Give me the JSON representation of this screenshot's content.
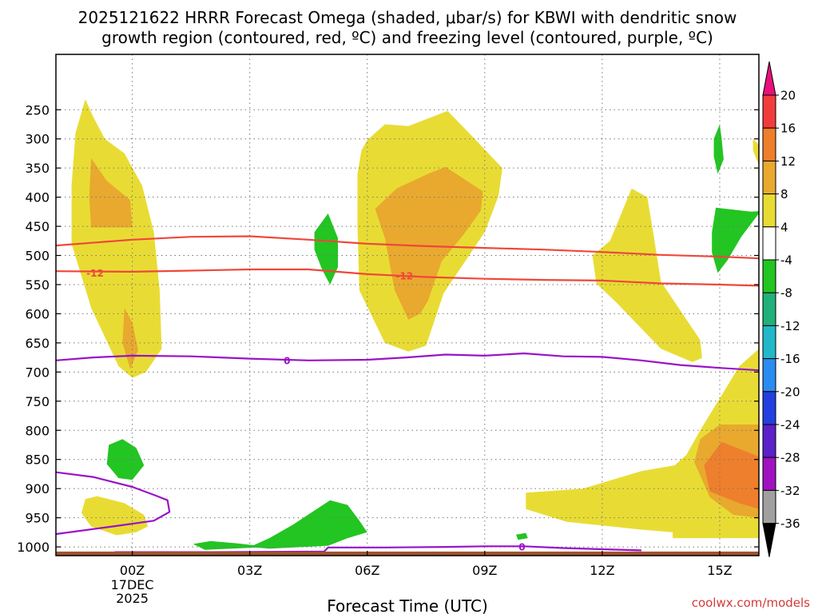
{
  "chart_data": {
    "type": "heatmap",
    "title_lines": [
      "2025121622 HRRR Forecast Omega (shaded, μbar/s) for KBWI with dendritic snow",
      "growth region (contoured, red, ºC) and freezing level (contoured, purple, ºC)"
    ],
    "xlabel": "Forecast Time (UTC)",
    "ylabel": "",
    "x_range_hours_from_00z": [
      -1.95,
      16.0
    ],
    "y_range_hPa": [
      1015,
      155
    ],
    "x_ticks": [
      {
        "hour": 0,
        "label": "00Z",
        "sub": [
          "17DEC",
          "2025"
        ]
      },
      {
        "hour": 3,
        "label": "03Z",
        "sub": []
      },
      {
        "hour": 6,
        "label": "06Z",
        "sub": []
      },
      {
        "hour": 9,
        "label": "09Z",
        "sub": []
      },
      {
        "hour": 12,
        "label": "12Z",
        "sub": []
      },
      {
        "hour": 15,
        "label": "15Z",
        "sub": []
      }
    ],
    "y_ticks": [
      250,
      300,
      350,
      400,
      450,
      500,
      550,
      600,
      650,
      700,
      750,
      800,
      850,
      900,
      950,
      1000
    ],
    "grid": true,
    "ground_surface_hPa": 1008,
    "ground_color": "#a0522d",
    "colorbar": {
      "label_values": [
        "20",
        "16",
        "12",
        "8",
        "4",
        "-4",
        "-8",
        "-12",
        "-16",
        "-20",
        "-24",
        "-28",
        "-32",
        "-36"
      ],
      "bins": [
        {
          "from": 16,
          "to": 20,
          "color": "#f23c3c"
        },
        {
          "from": 12,
          "to": 16,
          "color": "#ee7f2c"
        },
        {
          "from": 8,
          "to": 12,
          "color": "#e8a92e"
        },
        {
          "from": 4,
          "to": 8,
          "color": "#e8dc34"
        },
        {
          "from": -4,
          "to": 4,
          "color": "#ffffff"
        },
        {
          "from": -8,
          "to": -4,
          "color": "#22c522"
        },
        {
          "from": -12,
          "to": -8,
          "color": "#22b07a"
        },
        {
          "from": -16,
          "to": -12,
          "color": "#22b8c8"
        },
        {
          "from": -20,
          "to": -16,
          "color": "#2a8cf0"
        },
        {
          "from": -24,
          "to": -20,
          "color": "#2240e0"
        },
        {
          "from": -28,
          "to": -24,
          "color": "#5a22c8"
        },
        {
          "from": -32,
          "to": -28,
          "color": "#a012c0"
        },
        {
          "from": -36,
          "to": -32,
          "color": "#a0a0a0"
        }
      ],
      "top_extend_color": "#e8107a",
      "bottom_extend_color": "#000000"
    },
    "regions": [
      {
        "level": "4 to 8",
        "color": "#e8dc34",
        "points": [
          [
            -1.2,
            232
          ],
          [
            -1.0,
            262
          ],
          [
            -0.7,
            300
          ],
          [
            -0.2,
            325
          ],
          [
            0.25,
            380
          ],
          [
            0.55,
            460
          ],
          [
            0.7,
            560
          ],
          [
            0.75,
            660
          ],
          [
            0.35,
            700
          ],
          [
            0.0,
            710
          ],
          [
            -0.35,
            690
          ],
          [
            -1.05,
            590
          ],
          [
            -1.55,
            480
          ],
          [
            -1.55,
            380
          ],
          [
            -1.45,
            290
          ]
        ]
      },
      {
        "level": "8 to 12",
        "color": "#e8a92e",
        "points": [
          [
            -1.05,
            333
          ],
          [
            -0.65,
            372
          ],
          [
            -0.05,
            405
          ],
          [
            0.0,
            452
          ],
          [
            -1.05,
            452
          ],
          [
            -1.1,
            400
          ]
        ]
      },
      {
        "level": "8 to 12",
        "color": "#e8a92e",
        "points": [
          [
            -0.2,
            590
          ],
          [
            0.0,
            615
          ],
          [
            0.15,
            662
          ],
          [
            -0.05,
            695
          ],
          [
            -0.25,
            650
          ]
        ]
      },
      {
        "level": "4 to 8",
        "color": "#e8dc34",
        "points": [
          [
            7.05,
            278
          ],
          [
            8.05,
            252
          ],
          [
            8.6,
            290
          ],
          [
            9.45,
            350
          ],
          [
            9.35,
            398
          ],
          [
            9.0,
            460
          ],
          [
            8.4,
            520
          ],
          [
            7.95,
            565
          ],
          [
            7.5,
            655
          ],
          [
            7.05,
            665
          ],
          [
            6.45,
            650
          ],
          [
            5.8,
            560
          ],
          [
            5.75,
            450
          ],
          [
            5.75,
            360
          ],
          [
            5.85,
            320
          ],
          [
            6.0,
            302
          ],
          [
            6.45,
            275
          ]
        ]
      },
      {
        "level": "8 to 12",
        "color": "#e8a92e",
        "points": [
          [
            8.0,
            348
          ],
          [
            8.95,
            390
          ],
          [
            8.9,
            423
          ],
          [
            8.45,
            465
          ],
          [
            7.9,
            510
          ],
          [
            7.55,
            578
          ],
          [
            7.35,
            600
          ],
          [
            7.05,
            610
          ],
          [
            6.7,
            560
          ],
          [
            6.45,
            470
          ],
          [
            6.2,
            420
          ],
          [
            6.75,
            385
          ],
          [
            7.55,
            360
          ]
        ]
      },
      {
        "level": "4 to 8",
        "color": "#e8dc34",
        "points": [
          [
            12.75,
            385
          ],
          [
            13.15,
            400
          ],
          [
            13.3,
            460
          ],
          [
            13.5,
            545
          ],
          [
            14.35,
            630
          ],
          [
            14.5,
            645
          ],
          [
            14.55,
            676
          ],
          [
            14.3,
            683
          ],
          [
            13.5,
            660
          ],
          [
            12.35,
            580
          ],
          [
            11.85,
            548
          ],
          [
            11.75,
            500
          ],
          [
            12.2,
            475
          ]
        ]
      },
      {
        "level": "4 to 8",
        "color": "#e8dc34",
        "points": [
          [
            16.0,
            310
          ],
          [
            15.85,
            300
          ],
          [
            15.85,
            320
          ],
          [
            16.0,
            345
          ]
        ]
      },
      {
        "level": "4 to 8",
        "color": "#e8dc34",
        "points": [
          [
            -1.2,
            918
          ],
          [
            -0.9,
            913
          ],
          [
            -0.2,
            925
          ],
          [
            0.3,
            945
          ],
          [
            0.4,
            965
          ],
          [
            0.1,
            975
          ],
          [
            -0.4,
            980
          ],
          [
            -1.05,
            965
          ],
          [
            -1.3,
            942
          ]
        ]
      },
      {
        "level": "4 to 8",
        "color": "#e8dc34",
        "points": [
          [
            10.05,
            907
          ],
          [
            11.5,
            900
          ],
          [
            13.0,
            870
          ],
          [
            13.85,
            860
          ],
          [
            14.15,
            842
          ],
          [
            14.5,
            800
          ],
          [
            15.0,
            745
          ],
          [
            15.5,
            690
          ],
          [
            16.0,
            660
          ],
          [
            16.0,
            985
          ],
          [
            13.8,
            985
          ],
          [
            13.8,
            975
          ],
          [
            12.95,
            970
          ],
          [
            11.1,
            957
          ],
          [
            10.05,
            935
          ]
        ]
      },
      {
        "level": "8 to 12",
        "color": "#e8a92e",
        "points": [
          [
            16.0,
            790
          ],
          [
            15.0,
            790
          ],
          [
            14.5,
            815
          ],
          [
            14.35,
            855
          ],
          [
            14.75,
            915
          ],
          [
            15.35,
            945
          ],
          [
            16.0,
            950
          ]
        ]
      },
      {
        "level": "12 to 16",
        "color": "#ee7f2c",
        "points": [
          [
            16.0,
            845
          ],
          [
            15.05,
            820
          ],
          [
            14.6,
            860
          ],
          [
            14.75,
            905
          ],
          [
            15.5,
            925
          ],
          [
            16.0,
            935
          ]
        ]
      },
      {
        "level": "-8 to -4",
        "color": "#22c522",
        "points": [
          [
            -0.6,
            825
          ],
          [
            -0.25,
            815
          ],
          [
            0.1,
            830
          ],
          [
            0.3,
            860
          ],
          [
            0.0,
            885
          ],
          [
            -0.35,
            882
          ],
          [
            -0.65,
            858
          ]
        ]
      },
      {
        "level": "-8 to -4",
        "color": "#22c522",
        "points": [
          [
            5.0,
            428
          ],
          [
            5.25,
            470
          ],
          [
            5.25,
            520
          ],
          [
            5.05,
            550
          ],
          [
            4.85,
            525
          ],
          [
            4.65,
            490
          ],
          [
            4.65,
            460
          ]
        ]
      },
      {
        "level": "-8 to -4",
        "color": "#22c522",
        "points": [
          [
            15.0,
            275
          ],
          [
            15.05,
            300
          ],
          [
            15.1,
            335
          ],
          [
            14.95,
            360
          ],
          [
            14.85,
            330
          ],
          [
            14.85,
            300
          ]
        ]
      },
      {
        "level": "-8 to -4",
        "color": "#22c522",
        "points": [
          [
            16.0,
            424
          ],
          [
            15.8,
            425
          ],
          [
            14.9,
            418
          ],
          [
            14.8,
            460
          ],
          [
            14.8,
            495
          ],
          [
            14.95,
            530
          ],
          [
            15.2,
            508
          ],
          [
            15.55,
            468
          ],
          [
            16.0,
            428
          ]
        ]
      },
      {
        "level": "-8 to -4",
        "color": "#22c522",
        "points": [
          [
            1.55,
            995
          ],
          [
            2.0,
            990
          ],
          [
            2.7,
            994
          ],
          [
            3.5,
            1000
          ],
          [
            1.85,
            1005
          ]
        ]
      },
      {
        "level": "-8 to -4",
        "color": "#22c522",
        "points": [
          [
            3.0,
            1000
          ],
          [
            3.5,
            985
          ],
          [
            4.1,
            962
          ],
          [
            4.6,
            940
          ],
          [
            5.05,
            920
          ],
          [
            5.5,
            928
          ],
          [
            5.8,
            955
          ],
          [
            6.0,
            975
          ],
          [
            5.5,
            985
          ],
          [
            5.0,
            998
          ],
          [
            3.5,
            1003
          ]
        ]
      },
      {
        "level": "-8 to -4",
        "color": "#22c522",
        "points": [
          [
            9.8,
            979
          ],
          [
            10.05,
            976
          ],
          [
            10.1,
            985
          ],
          [
            9.85,
            988
          ]
        ]
      }
    ],
    "contours": [
      {
        "kind": "isotherm",
        "value": "-12",
        "color": "#f0473a",
        "points": [
          [
            -1.95,
            483
          ],
          [
            0.0,
            473
          ],
          [
            1.5,
            468
          ],
          [
            3.0,
            467
          ],
          [
            4.5,
            473
          ],
          [
            6.0,
            480
          ],
          [
            7.5,
            484
          ],
          [
            9.0,
            487
          ],
          [
            10.5,
            490
          ],
          [
            12.0,
            494
          ],
          [
            13.5,
            499
          ],
          [
            15.0,
            502
          ],
          [
            16.0,
            505
          ]
        ]
      },
      {
        "kind": "isotherm",
        "value": "-12",
        "color": "#f0473a",
        "label": {
          "text": "-12",
          "at": [
            -0.95,
            530
          ]
        },
        "points": [
          [
            -1.95,
            527
          ],
          [
            0.0,
            528
          ],
          [
            1.5,
            526
          ],
          [
            3.0,
            524
          ],
          [
            4.5,
            524
          ],
          [
            6.0,
            532
          ],
          [
            7.5,
            537
          ],
          [
            9.0,
            540
          ],
          [
            10.5,
            542
          ],
          [
            12.0,
            543
          ],
          [
            13.5,
            548
          ],
          [
            15.0,
            550
          ],
          [
            16.0,
            552
          ]
        ]
      },
      {
        "kind": "isotherm",
        "value": "-12",
        "color": "#f0473a",
        "label": {
          "text": "-12",
          "at": [
            6.95,
            535
          ]
        },
        "points": []
      },
      {
        "kind": "freezing_level",
        "value": "0",
        "color": "#9a12c9",
        "label": {
          "text": "0",
          "at": [
            3.95,
            680
          ]
        },
        "points": [
          [
            -1.95,
            680
          ],
          [
            -1.0,
            675
          ],
          [
            0.0,
            672
          ],
          [
            1.5,
            673
          ],
          [
            3.0,
            677
          ],
          [
            4.5,
            680
          ],
          [
            6.0,
            679
          ],
          [
            7.0,
            675
          ],
          [
            8.0,
            670
          ],
          [
            9.0,
            672
          ],
          [
            10.0,
            668
          ],
          [
            11.0,
            673
          ],
          [
            12.0,
            674
          ],
          [
            13.0,
            680
          ],
          [
            14.0,
            688
          ],
          [
            15.0,
            693
          ],
          [
            16.0,
            697
          ]
        ]
      },
      {
        "kind": "freezing_level",
        "value": "0",
        "color": "#9a12c9",
        "points": [
          [
            -1.95,
            872
          ],
          [
            -1.0,
            880
          ],
          [
            0.0,
            897
          ],
          [
            0.6,
            912
          ],
          [
            0.9,
            920
          ],
          [
            0.95,
            940
          ],
          [
            0.55,
            955
          ],
          [
            -0.5,
            965
          ],
          [
            -1.95,
            978
          ]
        ]
      },
      {
        "kind": "freezing_level",
        "value": "0",
        "color": "#9a12c9",
        "label": {
          "text": "0",
          "at": [
            9.95,
            1000
          ]
        },
        "points": [
          [
            -0.45,
            1009
          ],
          [
            2.0,
            1009
          ],
          [
            4.9,
            1008
          ],
          [
            5.0,
            1001
          ],
          [
            6.5,
            1001
          ],
          [
            8.0,
            1000
          ],
          [
            9.0,
            999
          ],
          [
            10.0,
            999
          ],
          [
            11.0,
            1002
          ],
          [
            12.0,
            1004
          ],
          [
            13.0,
            1006
          ]
        ]
      }
    ]
  },
  "credit": "coolwx.com/models"
}
